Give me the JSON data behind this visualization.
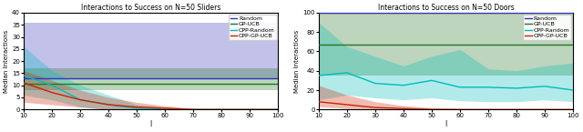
{
  "sliders": {
    "title": "Interactions to Success on N=50 Sliders",
    "xlabel": "l",
    "ylabel": "Median Interactions",
    "xlim": [
      10,
      100
    ],
    "ylim": [
      0,
      40
    ],
    "yticks": [
      0,
      5,
      10,
      15,
      20,
      25,
      30,
      35,
      40
    ],
    "xticks": [
      10,
      20,
      30,
      40,
      50,
      60,
      70,
      80,
      90,
      100
    ],
    "lines": {
      "Random": {
        "color": "#3333bb",
        "median": 13.0
      },
      "GP-UCB": {
        "color": "#227722",
        "median": 10.5
      },
      "CPP-Random": {
        "color": "#00bbbb",
        "x": [
          10,
          20,
          30,
          40,
          50,
          60,
          70,
          80,
          90,
          100
        ],
        "median": [
          14,
          10,
          4,
          2,
          0.5,
          0,
          0,
          0,
          0,
          0
        ],
        "q1": [
          6,
          4,
          1,
          0,
          0,
          0,
          0,
          0,
          0,
          0
        ],
        "q3": [
          26,
          16,
          10,
          6,
          2,
          1,
          0,
          0,
          0,
          0
        ]
      },
      "CPP-GP-UCB": {
        "color": "#cc2200",
        "x": [
          10,
          20,
          30,
          40,
          50,
          60,
          70,
          80,
          90,
          100
        ],
        "median": [
          11,
          7,
          4,
          2,
          1,
          0.5,
          0,
          0,
          0,
          0
        ],
        "q1": [
          3,
          2,
          1,
          0,
          0,
          0,
          0,
          0,
          0,
          0
        ],
        "q3": [
          16,
          12,
          8,
          5,
          3,
          1.5,
          0.5,
          0,
          0,
          0
        ]
      }
    },
    "fill_alpha": 0.3,
    "random_band_q1": 13.0,
    "random_band_q3": 36.0,
    "gpucb_band_q1": 8.0,
    "gpucb_band_q3": 17.0
  },
  "doors": {
    "title": "Interactions to Success on N=50 Doors",
    "xlabel": "l",
    "ylabel": "Median Interactions",
    "xlim": [
      10,
      100
    ],
    "ylim": [
      0,
      100
    ],
    "yticks": [
      0,
      20,
      40,
      60,
      80,
      100
    ],
    "xticks": [
      10,
      20,
      30,
      40,
      50,
      60,
      70,
      80,
      90,
      100
    ],
    "lines": {
      "Random": {
        "color": "#3333bb",
        "median": 100.0
      },
      "GP-UCB": {
        "color": "#227722",
        "median": 67.0
      },
      "CPP-Random": {
        "color": "#00bbbb",
        "x": [
          10,
          20,
          30,
          40,
          50,
          60,
          70,
          80,
          90,
          100
        ],
        "median": [
          35,
          38,
          27,
          25,
          30,
          23,
          23,
          22,
          24,
          20
        ],
        "q1": [
          10,
          15,
          12,
          10,
          12,
          9,
          8,
          8,
          10,
          8
        ],
        "q3": [
          90,
          65,
          55,
          45,
          55,
          62,
          42,
          40,
          45,
          48
        ]
      },
      "CPP-GP-UCB": {
        "color": "#cc2200",
        "x": [
          10,
          20,
          30,
          40,
          50,
          60,
          70,
          80,
          90,
          100
        ],
        "median": [
          8,
          5,
          2,
          1,
          0,
          0,
          0,
          0,
          0,
          0
        ],
        "q1": [
          3,
          1,
          0,
          0,
          0,
          0,
          0,
          0,
          0,
          0
        ],
        "q3": [
          25,
          15,
          8,
          4,
          2,
          1,
          0,
          0,
          0,
          0
        ]
      }
    },
    "fill_alpha": 0.3,
    "random_band_q1": 100.0,
    "random_band_q3": 100.0,
    "gpucb_band_q1": 35.0,
    "gpucb_band_q3": 100.0
  }
}
